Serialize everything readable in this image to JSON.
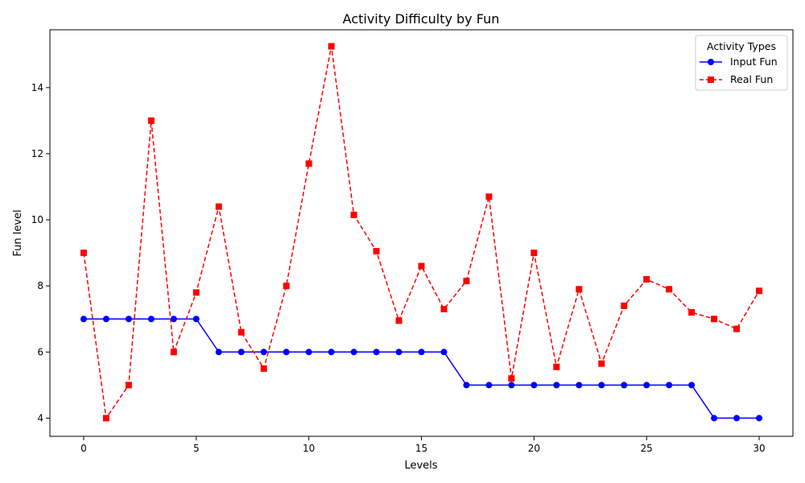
{
  "chart_data": {
    "type": "line",
    "title": "Activity Difficulty by Fun",
    "xlabel": "Levels",
    "ylabel": "Fun level",
    "x": [
      0,
      1,
      2,
      3,
      4,
      5,
      6,
      7,
      8,
      9,
      10,
      11,
      12,
      13,
      14,
      15,
      16,
      17,
      18,
      19,
      20,
      21,
      22,
      23,
      24,
      25,
      26,
      27,
      28,
      29,
      30
    ],
    "xlim": [
      -1.5,
      31.5
    ],
    "ylim": [
      3.45,
      15.75
    ],
    "xticks": [
      0,
      5,
      10,
      15,
      20,
      25,
      30
    ],
    "yticks": [
      4,
      6,
      8,
      10,
      12,
      14
    ],
    "grid": false,
    "legend": {
      "title": "Activity Types",
      "placement": "top-right"
    },
    "series": [
      {
        "name": "Input Fun",
        "color": "#0000ff",
        "linestyle": "solid",
        "marker": "circle",
        "values": [
          7,
          7,
          7,
          7,
          7,
          7,
          6,
          6,
          6,
          6,
          6,
          6,
          6,
          6,
          6,
          6,
          6,
          5,
          5,
          5,
          5,
          5,
          5,
          5,
          5,
          5,
          5,
          5,
          4,
          4,
          4
        ]
      },
      {
        "name": "Real Fun",
        "color": "#ff0000",
        "linestyle": "dashed",
        "marker": "square",
        "values": [
          9,
          4,
          5,
          13,
          6,
          7.8,
          10.4,
          6.6,
          5.5,
          8,
          11.7,
          15.25,
          10.15,
          9.05,
          6.95,
          8.6,
          7.3,
          8.15,
          10.7,
          5.2,
          9,
          5.55,
          7.9,
          5.65,
          7.4,
          8.2,
          7.9,
          7.2,
          7,
          6.7,
          7.85
        ]
      }
    ]
  }
}
